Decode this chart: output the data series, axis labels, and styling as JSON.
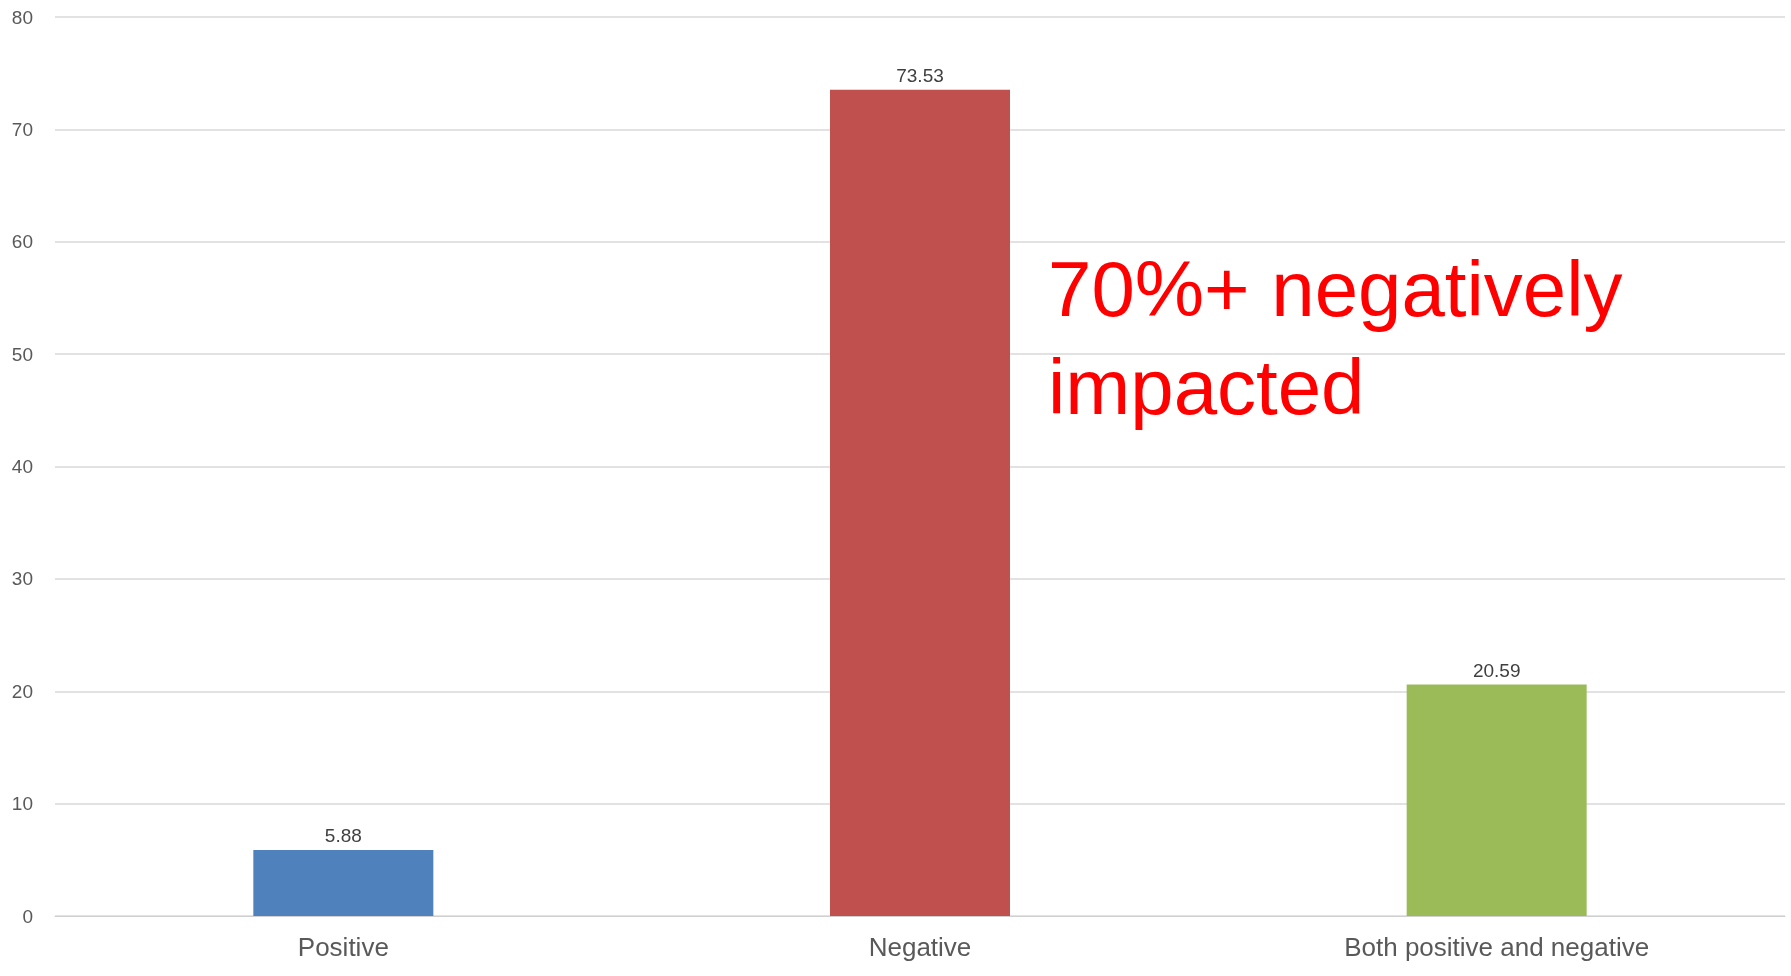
{
  "chart_data": {
    "type": "bar",
    "categories": [
      "Positive",
      "Negative",
      "Both positive and negative"
    ],
    "values": [
      5.88,
      73.53,
      20.59
    ],
    "colors": [
      "#4f81bd",
      "#c0504d",
      "#9bbb59"
    ],
    "ylim": [
      0,
      80
    ],
    "yticks": [
      0,
      10,
      20,
      30,
      40,
      50,
      60,
      70,
      80
    ],
    "grid": "y",
    "data_labels": true,
    "annotations": [
      "70%+ negatively\nimpacted"
    ]
  }
}
